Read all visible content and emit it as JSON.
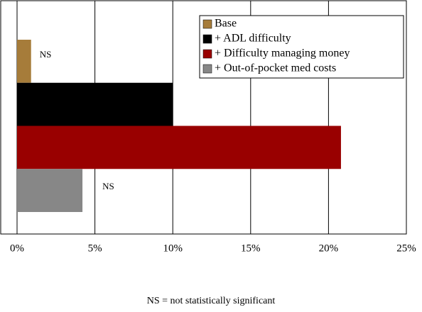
{
  "chart_data": {
    "type": "bar",
    "orientation": "horizontal",
    "series": [
      {
        "name": "Base",
        "color": "#a67c3a",
        "values": [
          0.9
        ],
        "annotation": "NS"
      },
      {
        "name": "+ ADL difficulty",
        "color": "#000000",
        "values": [
          10
        ]
      },
      {
        "name": "+ Difficulty managing money",
        "color": "#990000",
        "values": [
          20.8
        ]
      },
      {
        "name": "+ Out-of-pocket med costs",
        "color": "#878787",
        "values": [
          4.2
        ],
        "annotation": "NS"
      }
    ],
    "xlim": [
      0,
      25
    ],
    "xticks": [
      {
        "value": 0,
        "label": "0%"
      },
      {
        "value": 5,
        "label": "5%"
      },
      {
        "value": 10,
        "label": "10%"
      },
      {
        "value": 15,
        "label": "15%"
      },
      {
        "value": 20,
        "label": "20%"
      },
      {
        "value": 25,
        "label": "25%"
      }
    ],
    "grid": true,
    "legend": "upper right",
    "note": "NS = not statistically significant"
  }
}
